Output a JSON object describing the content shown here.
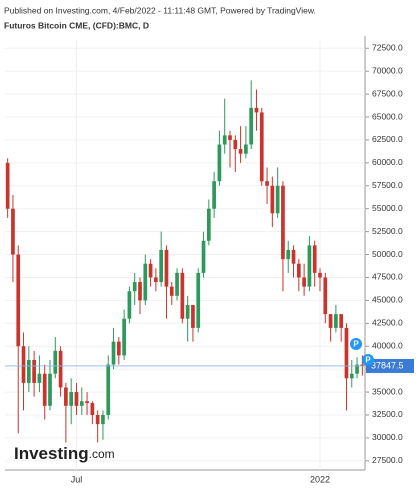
{
  "chart_data": {
    "type": "candlestick",
    "header": "Published on Investing.com, 4/Feb/2022 - 11:11:48 GMT, Powered by TradingView.",
    "title": "Futuros Bitcoin CME, (CFD):BMC, D",
    "watermark": [
      "Investing",
      ".com"
    ],
    "categories": [
      null,
      null,
      null,
      null,
      null,
      null,
      null,
      null,
      null,
      null,
      null,
      null,
      null,
      "Jul",
      null,
      null,
      null,
      null,
      null,
      null,
      null,
      null,
      null,
      null,
      null,
      null,
      null,
      null,
      null,
      null,
      null,
      null,
      null,
      null,
      null,
      null,
      null,
      null,
      null,
      null,
      null,
      null,
      null,
      null,
      null,
      null,
      null,
      null,
      null,
      null,
      null,
      null,
      null,
      null,
      null,
      null,
      null,
      null,
      null,
      "2022",
      null,
      null,
      null,
      null,
      null,
      null,
      null,
      null
    ],
    "open": [
      60000,
      55000,
      50000,
      40000,
      36000,
      38500,
      36000,
      37000,
      33500,
      37000,
      39500,
      35500,
      33500,
      35000,
      33500,
      34000,
      33800,
      32500,
      31500,
      32500,
      38000,
      40500,
      39000,
      43000,
      46000,
      47000,
      45000,
      49000,
      47500,
      47000,
      50500,
      46500,
      45500,
      48000,
      43000,
      44500,
      42000,
      48000,
      51500,
      55000,
      58000,
      62000,
      63000,
      62500,
      61500,
      61000,
      62000,
      66000,
      65500,
      58000,
      57500,
      54500,
      57500,
      49500,
      50500,
      49000,
      47500,
      46500,
      51000,
      48000,
      47500,
      43500,
      42000,
      43500,
      42000,
      36500,
      37000,
      38000
    ],
    "high": [
      60500,
      56500,
      51000,
      41500,
      40000,
      39500,
      39000,
      38000,
      38500,
      41000,
      40000,
      36000,
      36500,
      36000,
      35500,
      35000,
      34000,
      33000,
      33000,
      39000,
      42000,
      41000,
      44000,
      46500,
      48000,
      47500,
      50000,
      49500,
      48500,
      52500,
      51000,
      47000,
      48500,
      48500,
      45500,
      44500,
      48500,
      52500,
      56000,
      59000,
      63500,
      67000,
      63500,
      63000,
      64000,
      64000,
      69000,
      68000,
      66000,
      59500,
      58500,
      59500,
      58000,
      51500,
      51000,
      49500,
      49000,
      52000,
      51500,
      48500,
      48000,
      43500,
      44500,
      43500,
      42500,
      38500,
      38800,
      39000
    ],
    "low": [
      54000,
      47000,
      30500,
      33000,
      35000,
      34500,
      35000,
      32000,
      33000,
      36500,
      34500,
      29500,
      31500,
      32500,
      32500,
      32500,
      31500,
      29500,
      29800,
      32000,
      37500,
      38000,
      38500,
      42500,
      44500,
      43500,
      44500,
      46500,
      46000,
      46500,
      43000,
      44500,
      45000,
      42500,
      40500,
      40500,
      41500,
      47500,
      51000,
      54000,
      57500,
      61000,
      59500,
      59000,
      60000,
      60500,
      61500,
      63500,
      57500,
      55500,
      53000,
      54000,
      46000,
      48000,
      47500,
      46000,
      45500,
      46000,
      46500,
      46000,
      42500,
      40500,
      41500,
      40500,
      33000,
      35500,
      36500,
      36800
    ],
    "close": [
      55000,
      50000,
      40000,
      36000,
      38500,
      36000,
      37000,
      33500,
      37000,
      39500,
      35500,
      33500,
      35000,
      33500,
      34000,
      33800,
      32500,
      31500,
      32500,
      38000,
      40500,
      39000,
      43000,
      46000,
      47000,
      45000,
      49000,
      47500,
      47000,
      50500,
      46500,
      45500,
      48000,
      43000,
      44500,
      42000,
      48000,
      51500,
      55000,
      58000,
      62000,
      63000,
      62500,
      61500,
      61000,
      62000,
      66000,
      65500,
      58000,
      57500,
      54500,
      57500,
      49500,
      50500,
      49000,
      47500,
      46500,
      51000,
      48000,
      47500,
      43500,
      42000,
      43500,
      42000,
      36500,
      37000,
      38000,
      37847.5
    ],
    "up_color": "#2d9a5c",
    "down_color": "#c8352e",
    "last_price": 37847.5,
    "annotations": [
      "P",
      "P"
    ],
    "ylim": [
      26500,
      73400
    ],
    "yticks": [
      {
        "value": 27500,
        "label": "27500.0"
      },
      {
        "value": 30000,
        "label": "30000.0"
      },
      {
        "value": 32500,
        "label": "32500.0"
      },
      {
        "value": 35000,
        "label": "35000.0"
      },
      {
        "value": 37500,
        "label": "37500.0"
      },
      {
        "value": 40000,
        "label": "40000.0"
      },
      {
        "value": 42500,
        "label": "42500.0"
      },
      {
        "value": 45000,
        "label": "45000.0"
      },
      {
        "value": 47500,
        "label": "47500.0"
      },
      {
        "value": 50000,
        "label": "50000.0"
      },
      {
        "value": 52500,
        "label": "52500.0"
      },
      {
        "value": 55000,
        "label": "55000.0"
      },
      {
        "value": 57500,
        "label": "57500.0"
      },
      {
        "value": 60000,
        "label": "60000.0"
      },
      {
        "value": 62500,
        "label": "62500.0"
      },
      {
        "value": 65000,
        "label": "65000.0"
      },
      {
        "value": 67500,
        "label": "67500.0"
      },
      {
        "value": 70000,
        "label": "70000.0"
      },
      {
        "value": 72500,
        "label": "72500.0"
      }
    ],
    "grid": true
  }
}
